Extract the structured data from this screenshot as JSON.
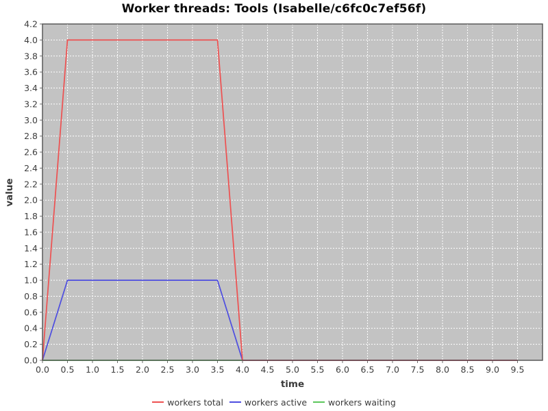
{
  "title": "Worker threads: Tools (Isabelle/c6fc0c7ef56f)",
  "chart_data": {
    "type": "line",
    "title": "Worker threads: Tools (Isabelle/c6fc0c7ef56f)",
    "xlabel": "time",
    "ylabel": "value",
    "xlim": [
      0.0,
      10.0
    ],
    "ylim": [
      0.0,
      4.2
    ],
    "x_ticks": [
      "0.0",
      "0.5",
      "1.0",
      "1.5",
      "2.0",
      "2.5",
      "3.0",
      "3.5",
      "4.0",
      "4.5",
      "5.0",
      "5.5",
      "6.0",
      "6.5",
      "7.0",
      "7.5",
      "8.0",
      "8.5",
      "9.0",
      "9.5"
    ],
    "y_ticks": [
      "0.0",
      "0.2",
      "0.4",
      "0.6",
      "0.8",
      "1.0",
      "1.2",
      "1.4",
      "1.6",
      "1.8",
      "2.0",
      "2.2",
      "2.4",
      "2.6",
      "2.8",
      "3.0",
      "3.2",
      "3.4",
      "3.6",
      "3.8",
      "4.0",
      "4.2"
    ],
    "grid": true,
    "legend_position": "bottom",
    "colors": {
      "plot_background": "#c3c3c3",
      "grid_line": "#ffffff",
      "plot_border": "#4f4f4f",
      "tick_mark": "#6b6b6b",
      "tick_label": "#3d3d3d"
    },
    "series": [
      {
        "name": "workers total",
        "color": "#ee5050",
        "points": [
          [
            0,
            0
          ],
          [
            0.5,
            4
          ],
          [
            3.5,
            4
          ],
          [
            4,
            0
          ],
          [
            9.5,
            0
          ]
        ]
      },
      {
        "name": "workers active",
        "color": "#4d4de0",
        "points": [
          [
            0,
            0
          ],
          [
            0.5,
            1
          ],
          [
            3.5,
            1
          ],
          [
            4,
            0
          ],
          [
            9.5,
            0
          ]
        ]
      },
      {
        "name": "workers waiting",
        "color": "#5bc65b",
        "points": [
          [
            0,
            0
          ],
          [
            9.5,
            0
          ]
        ]
      }
    ],
    "draw_order": [
      2,
      1,
      0
    ]
  }
}
